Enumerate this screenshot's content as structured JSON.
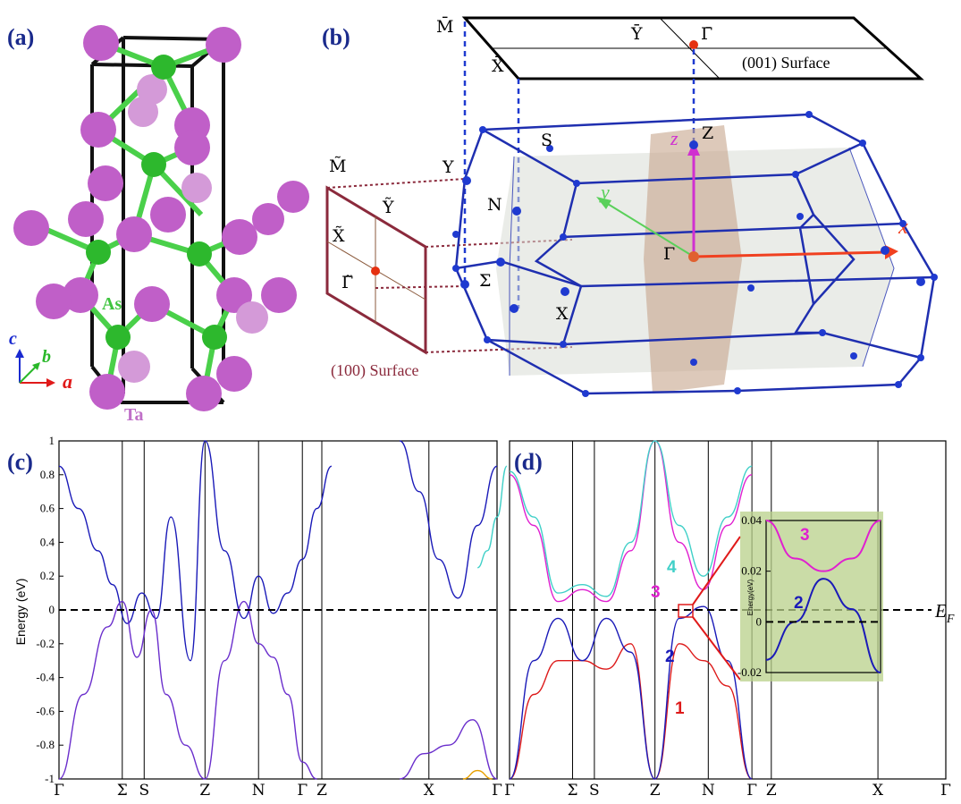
{
  "panels": {
    "a": "(a)",
    "b": "(b)",
    "c": "(c)",
    "d": "(d)"
  },
  "crystal": {
    "atom_as": "As",
    "atom_ta": "Ta",
    "axis_a": "a",
    "axis_b": "b",
    "axis_c": "c",
    "colors": {
      "ta": "#c05fc8",
      "as": "#2db82d",
      "cell": "#111111"
    }
  },
  "bz": {
    "points": {
      "m_bar": "M̄",
      "x_bar": "X̄",
      "y_bar": "Ȳ",
      "gamma_bar": "Γ̄",
      "m_tilde": "M̃",
      "y_tilde": "Ỹ",
      "x_tilde": "X̃",
      "gamma_tilde": "Γ̃",
      "y": "Y",
      "s": "S",
      "n": "N",
      "sigma": "Σ",
      "x": "X",
      "gamma": "Γ",
      "z": "Z",
      "kz": "z",
      "ky": "y",
      "kx": "x"
    },
    "surface_001": "(001) Surface",
    "surface_100": "(100) Surface",
    "colors": {
      "zone": "#1f2fb0",
      "plane_100": "#8b2a3c",
      "surface_point": "#e53010"
    }
  },
  "chart_data": [
    {
      "type": "line",
      "panel": "c",
      "ylabel": "Energy (eV)",
      "ylim": [
        -1,
        1
      ],
      "yticks": [
        "1",
        "0.8",
        "0.6",
        "0.4",
        "0.2",
        "0",
        "-0.2",
        "-0.4",
        "-0.6",
        "-0.8",
        "-1"
      ],
      "xticks": [
        "Γ",
        "Σ",
        "S",
        "Z",
        "N",
        "Γ",
        "Z",
        "X",
        "Γ"
      ],
      "fermi_level": 0,
      "series": [
        {
          "color": "#1a1ab8",
          "x": [
            0,
            0.4,
            0.8,
            1.1,
            1.4,
            1.7,
            2.0,
            2.3,
            2.7,
            3.0,
            3.4,
            3.8,
            4.1,
            4.4,
            4.7,
            5.0,
            5.3,
            5.6
          ],
          "y": [
            0.85,
            0.6,
            0.35,
            0.15,
            -0.08,
            0.1,
            -0.05,
            0.55,
            -0.3,
            1.0,
            0.35,
            -0.05,
            0.2,
            -0.02,
            0.1,
            0.3,
            0.6,
            0.85
          ]
        },
        {
          "color": "#6a2ecc",
          "x": [
            0,
            0.5,
            1.0,
            1.3,
            1.6,
            1.9,
            2.2,
            2.6,
            3.0,
            3.4,
            3.8,
            4.1,
            4.4,
            4.7,
            5.0,
            5.3
          ],
          "y": [
            -1.0,
            -0.5,
            -0.1,
            0.05,
            -0.28,
            0.0,
            -0.5,
            -0.8,
            -1.0,
            -0.3,
            0.05,
            -0.2,
            -0.28,
            -0.5,
            -0.9,
            -1.0
          ]
        },
        {
          "color": "#1a1ab8",
          "x": [
            7.0,
            7.4,
            7.8,
            8.2,
            8.6,
            9.0
          ],
          "y": [
            1.0,
            0.7,
            0.3,
            0.07,
            0.5,
            0.85
          ]
        },
        {
          "color": "#40d0c8",
          "x": [
            8.6,
            8.8,
            9.0,
            9.2
          ],
          "y": [
            0.25,
            0.35,
            0.55,
            0.85
          ]
        },
        {
          "color": "#6a2ecc",
          "x": [
            7.0,
            7.5,
            8.0,
            8.5,
            9.0
          ],
          "y": [
            -1.0,
            -0.85,
            -0.8,
            -0.65,
            -1.0
          ]
        },
        {
          "color": "#e8a000",
          "x": [
            8.3,
            8.6,
            8.9
          ],
          "y": [
            -1.0,
            -0.95,
            -1.0
          ]
        }
      ]
    },
    {
      "type": "line",
      "panel": "d",
      "xticks": [
        "Γ",
        "Σ",
        "S",
        "Z",
        "N",
        "Γ",
        "Z",
        "X",
        "Γ"
      ],
      "fermi_label": "E_F",
      "band_labels": [
        "1",
        "2",
        "3",
        "4"
      ],
      "fermi_level": 0,
      "series": [
        {
          "name": "1",
          "color": "#dd1a1a",
          "x": [
            0,
            0.5,
            1.0,
            1.5,
            2.0,
            2.5,
            3.0,
            3.5,
            4.0,
            4.5,
            5.0
          ],
          "y": [
            -1.0,
            -0.5,
            -0.3,
            -0.3,
            -0.35,
            -0.2,
            -1.0,
            -0.2,
            -0.3,
            -0.45,
            -1.0
          ]
        },
        {
          "name": "2",
          "color": "#1a1ab8",
          "x": [
            0,
            0.5,
            1.0,
            1.5,
            2.0,
            2.5,
            3.0,
            3.5,
            4.0,
            4.5,
            5.0
          ],
          "y": [
            -1.0,
            -0.3,
            -0.05,
            -0.3,
            -0.05,
            -0.25,
            -1.0,
            -0.05,
            0.02,
            -0.3,
            -1.0
          ]
        },
        {
          "name": "3",
          "color": "#e020d0",
          "x": [
            0,
            0.5,
            1.0,
            1.5,
            2.0,
            2.5,
            3.0,
            3.5,
            4.0,
            4.5,
            5.0
          ],
          "y": [
            0.8,
            0.5,
            0.05,
            0.12,
            0.05,
            0.35,
            1.0,
            0.4,
            0.12,
            0.5,
            0.8
          ]
        },
        {
          "name": "4",
          "color": "#40d0c8",
          "x": [
            0,
            0.5,
            1.0,
            1.5,
            2.0,
            2.5,
            3.0,
            3.5,
            4.0,
            4.5,
            5.0
          ],
          "y": [
            0.82,
            0.55,
            0.1,
            0.15,
            0.08,
            0.4,
            1.0,
            0.5,
            0.2,
            0.55,
            0.85
          ]
        }
      ]
    },
    {
      "type": "line",
      "panel": "d-inset",
      "ylabel": "Energy(eV)",
      "ylim": [
        -0.02,
        0.04
      ],
      "yticks": [
        "0.04",
        "0.02",
        "0",
        "-0.02"
      ],
      "series": [
        {
          "name": "3",
          "color": "#e020d0",
          "x": [
            0,
            0.25,
            0.5,
            0.75,
            1.0
          ],
          "y": [
            0.04,
            0.025,
            0.02,
            0.025,
            0.04
          ]
        },
        {
          "name": "2",
          "color": "#1a1ab8",
          "x": [
            0,
            0.25,
            0.5,
            0.75,
            1.0
          ],
          "y": [
            -0.015,
            0.0,
            0.017,
            0.005,
            -0.02
          ]
        }
      ]
    }
  ]
}
